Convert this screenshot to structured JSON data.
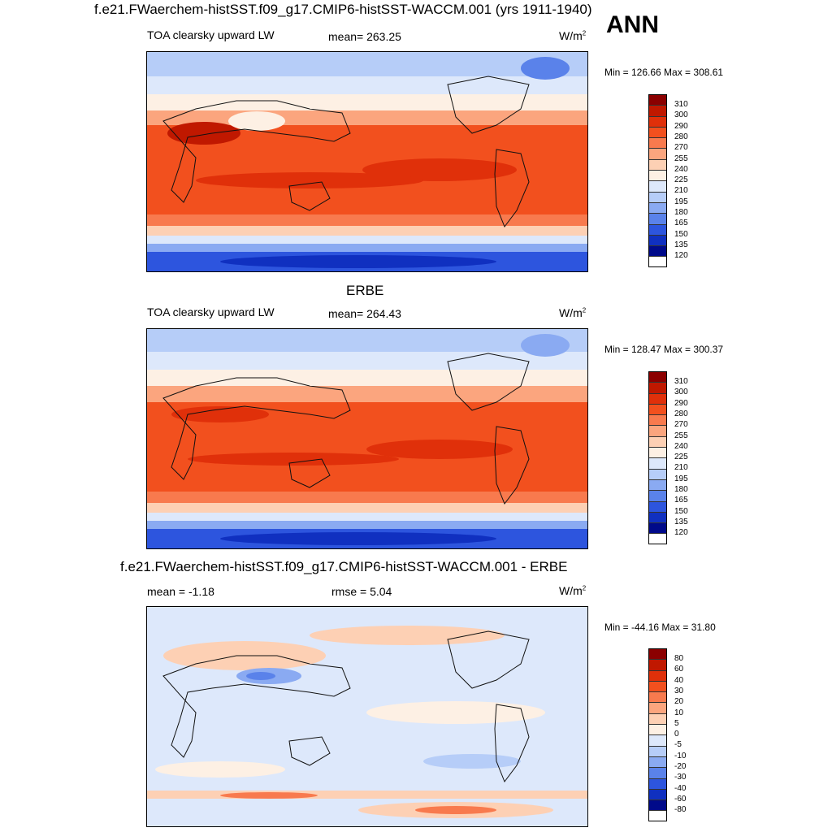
{
  "figure": {
    "title": "f.e21.FWaerchem-histSST.f09_g17.CMIP6-histSST-WACCM.001 (yrs 1911-1940)",
    "season": "ANN"
  },
  "panels": [
    {
      "title": "",
      "left_label": "TOA clearsky upward LW",
      "center_label": "mean= 263.25",
      "units": "W/m",
      "units_sup": "2",
      "minmax": "Min = 126.66 Max = 308.61",
      "levels": [
        "310",
        "300",
        "290",
        "280",
        "270",
        "255",
        "240",
        "225",
        "210",
        "195",
        "180",
        "165",
        "150",
        "135",
        "120"
      ]
    },
    {
      "title": "ERBE",
      "left_label": "TOA clearsky upward LW",
      "center_label": "mean= 264.43",
      "units": "W/m",
      "units_sup": "2",
      "minmax": "Min = 128.47 Max = 300.37",
      "levels": [
        "310",
        "300",
        "290",
        "280",
        "270",
        "255",
        "240",
        "225",
        "210",
        "195",
        "180",
        "165",
        "150",
        "135",
        "120"
      ]
    },
    {
      "title": "f.e21.FWaerchem-histSST.f09_g17.CMIP6-histSST-WACCM.001 - ERBE",
      "left_label": "mean =  -1.18",
      "center_label": "rmse =   5.04",
      "units": "W/m",
      "units_sup": "2",
      "minmax": "Min = -44.16 Max =  31.80",
      "levels": [
        "80",
        "60",
        "40",
        "30",
        "20",
        "10",
        "5",
        "0",
        "-5",
        "-10",
        "-20",
        "-30",
        "-40",
        "-60",
        "-80"
      ]
    }
  ],
  "colors": {
    "colorbar": [
      "#8b0000",
      "#c01800",
      "#e0300a",
      "#f2501e",
      "#f87a4e",
      "#fba57e",
      "#fdd0b4",
      "#fdf0e4",
      "#dde8fb",
      "#b6cdf8",
      "#8aaaf2",
      "#5a82ea",
      "#2d55de",
      "#1030c0",
      "#000a8a"
    ]
  }
}
